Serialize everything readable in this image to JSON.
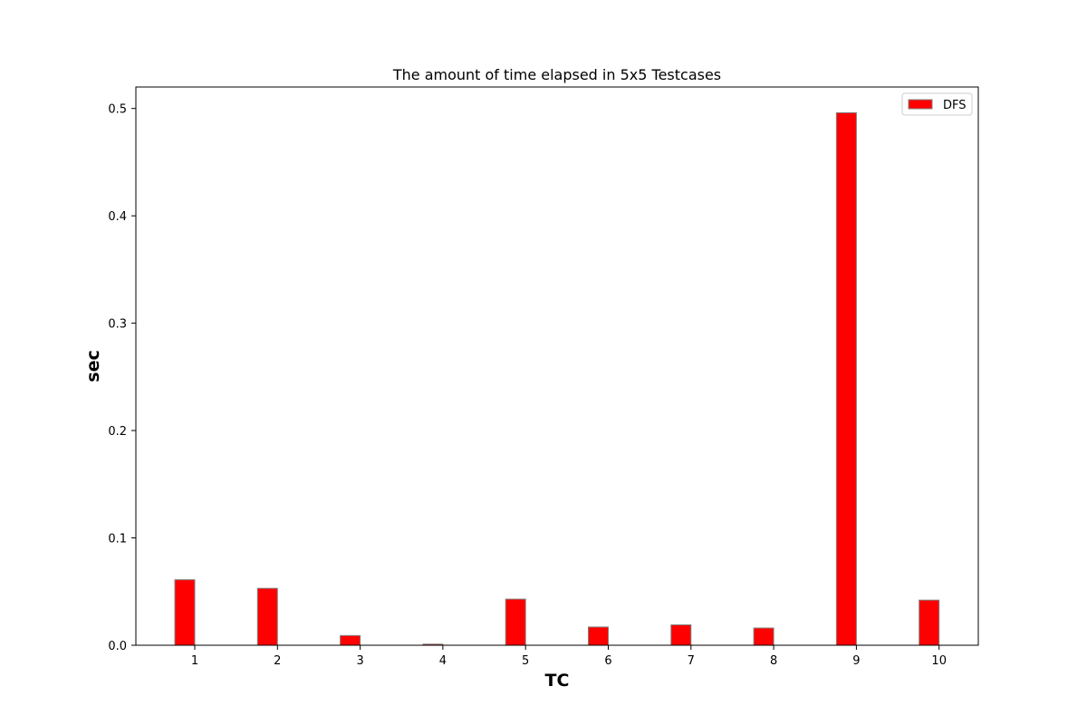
{
  "chart_data": {
    "type": "bar",
    "title": "The amount of time elapsed in 5x5 Testcases",
    "xlabel": "TC",
    "ylabel": "sec",
    "categories": [
      "1",
      "2",
      "3",
      "4",
      "5",
      "6",
      "7",
      "8",
      "9",
      "10"
    ],
    "series": [
      {
        "name": "DFS",
        "values": [
          0.061,
          0.053,
          0.009,
          0.001,
          0.043,
          0.017,
          0.019,
          0.016,
          0.496,
          0.042
        ],
        "color": "#ff0000",
        "edge_color": "#808080"
      }
    ],
    "ylim": [
      0,
      0.52
    ],
    "yticks": [
      0.0,
      0.1,
      0.2,
      0.3,
      0.4,
      0.5
    ],
    "ytick_labels": [
      "0.0",
      "0.1",
      "0.2",
      "0.3",
      "0.4",
      "0.5"
    ],
    "grid": false,
    "legend_position": "top-right"
  }
}
